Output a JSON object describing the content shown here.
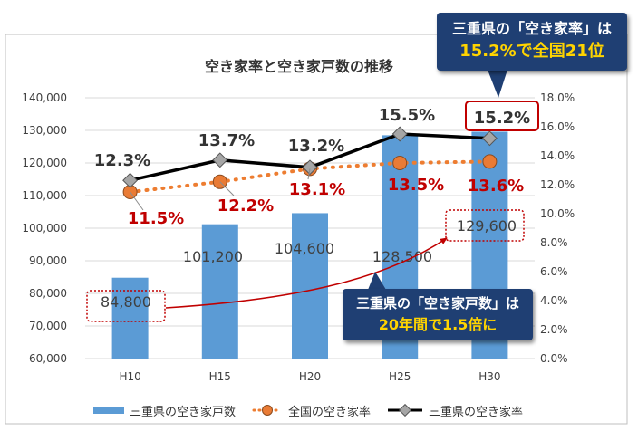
{
  "chart_data": {
    "type": "bar",
    "title": "空き家率と空き家戸数の推移",
    "categories": [
      "H10",
      "H15",
      "H20",
      "H25",
      "H30"
    ],
    "series": [
      {
        "name": "三重県の空き家戸数",
        "kind": "bar",
        "axis": "left",
        "values": [
          84800,
          101200,
          104600,
          128500,
          129600
        ],
        "labels": [
          "84,800",
          "101,200",
          "104,600",
          "128,500",
          "129,600"
        ],
        "color": "#5b9bd5"
      },
      {
        "name": "全国の空き家率",
        "kind": "line",
        "axis": "right",
        "values": [
          11.5,
          12.2,
          13.1,
          13.5,
          13.6
        ],
        "labels": [
          "11.5%",
          "12.2%",
          "13.1%",
          "13.5%",
          "13.6%"
        ],
        "color": "#ed7d31"
      },
      {
        "name": "三重県の空き家率",
        "kind": "line",
        "axis": "right",
        "values": [
          12.3,
          13.7,
          13.2,
          15.5,
          15.2
        ],
        "labels": [
          "12.3%",
          "13.7%",
          "13.2%",
          "15.5%",
          "15.2%"
        ],
        "color": "#000000"
      }
    ],
    "left_axis": {
      "ylim": [
        60000,
        140000
      ],
      "ticks": [
        "60,000",
        "70,000",
        "80,000",
        "90,000",
        "100,000",
        "110,000",
        "120,000",
        "130,000",
        "140,000"
      ]
    },
    "right_axis": {
      "ylim": [
        0,
        18
      ],
      "ticks": [
        "0.0%",
        "2.0%",
        "4.0%",
        "6.0%",
        "8.0%",
        "10.0%",
        "12.0%",
        "14.0%",
        "16.0%",
        "18.0%"
      ]
    },
    "legend": "bottom"
  },
  "callouts": {
    "top": {
      "line1": "三重県の「空き家率」は",
      "line2": "15.2%で全国21位"
    },
    "bottom": {
      "line1": "三重県の「空き家戸数」は",
      "line2": "20年間で1.5倍に"
    }
  },
  "colors": {
    "bar": "#5b9bd5",
    "national_line": "#ed7d31",
    "national_marker": "#e97b35",
    "mie_line": "#000000",
    "mie_marker": "#a6a6a6",
    "highlight_red": "#c00000",
    "callout_bg": "#1f3f73",
    "callout_highlight": "#ffd400"
  }
}
